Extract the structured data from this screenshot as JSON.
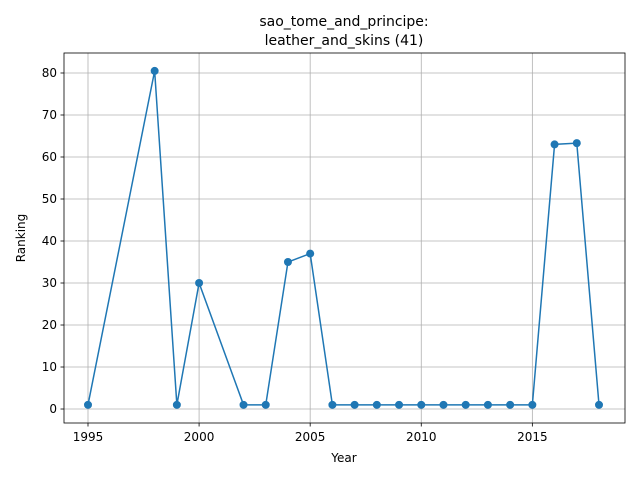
{
  "chart_data": {
    "type": "line",
    "title": [
      "sao_tome_and_principe:",
      "leather_and_skins (41)"
    ],
    "xlabel": "Year",
    "ylabel": "Ranking",
    "x": [
      1995,
      1998,
      1999,
      2000,
      2002,
      2003,
      2004,
      2005,
      2006,
      2007,
      2008,
      2009,
      2010,
      2011,
      2012,
      2013,
      2014,
      2015,
      2016,
      2017,
      2018
    ],
    "series": [
      {
        "name": "Ranking",
        "color": "#1f77b4",
        "values": [
          1,
          80.5,
          1,
          30,
          1,
          1,
          35,
          37,
          1,
          1,
          1,
          1,
          1,
          1,
          1,
          1,
          1,
          1,
          63,
          63.3,
          1
        ]
      }
    ],
    "xlim": [
      1993.92,
      2019.17
    ],
    "ylim": [
      -3.33,
      84.76
    ],
    "xticks": [
      1995,
      2000,
      2005,
      2010,
      2015
    ],
    "yticks": [
      0,
      10,
      20,
      30,
      40,
      50,
      60,
      70,
      80
    ],
    "grid": true
  }
}
